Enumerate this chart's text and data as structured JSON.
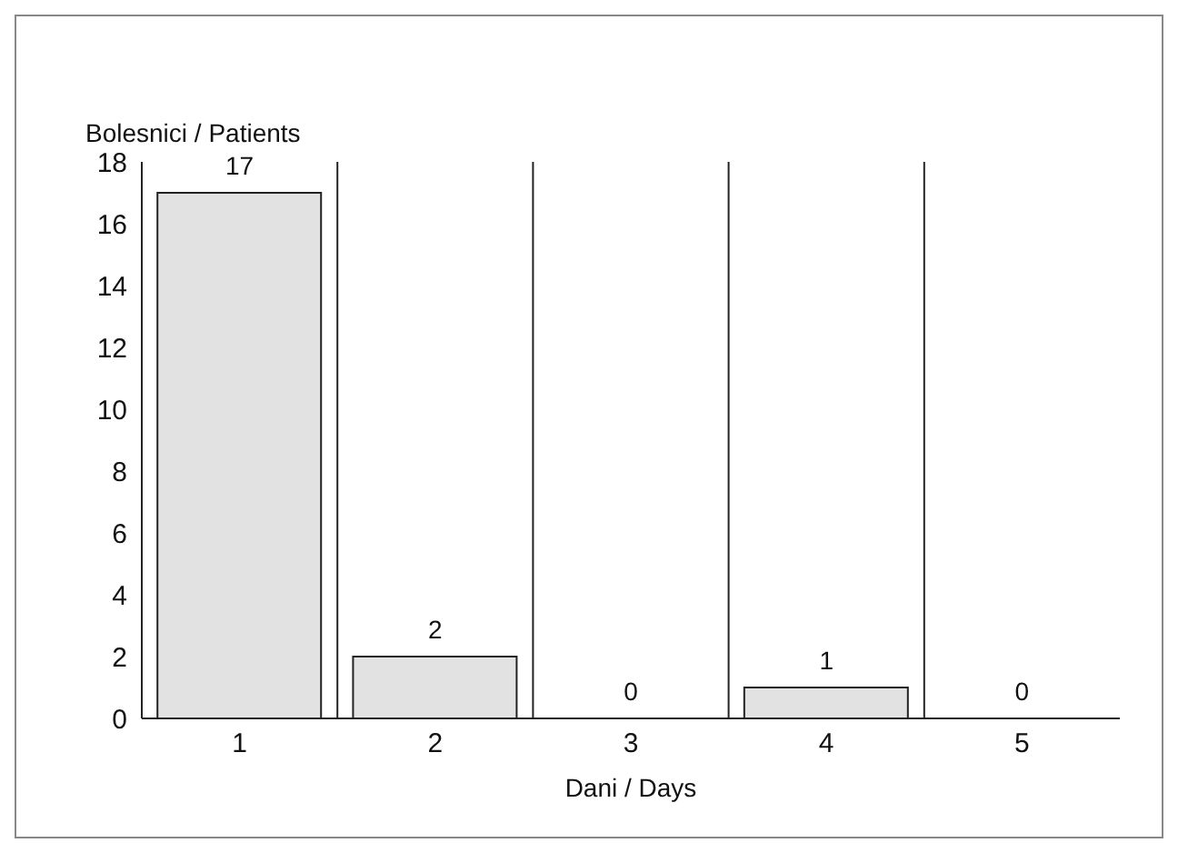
{
  "chart_data": {
    "type": "bar",
    "ylabel": "Bolesnici / Patients",
    "xlabel": "Dani / Days",
    "categories": [
      "1",
      "2",
      "3",
      "4",
      "5"
    ],
    "values": [
      17,
      2,
      0,
      1,
      0
    ],
    "color": "#e2e2e2",
    "ylim": [
      0,
      18
    ],
    "yticks": [
      0,
      2,
      4,
      6,
      8,
      10,
      12,
      14,
      16,
      18
    ],
    "grid": "x",
    "data_labels": true
  }
}
